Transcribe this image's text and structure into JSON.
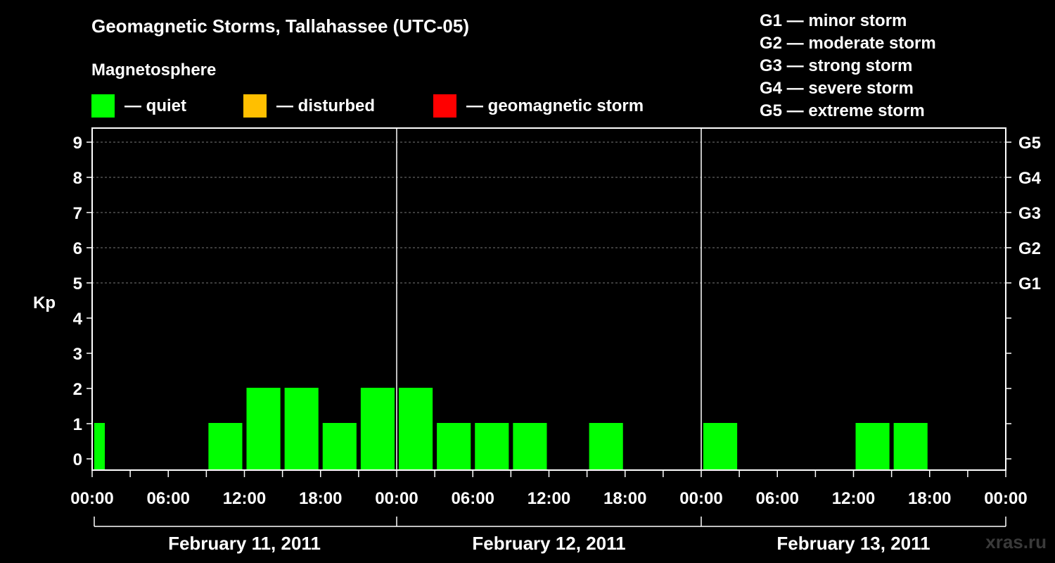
{
  "header": {
    "title": "Geomagnetic Storms, Tallahassee (UTC-05)",
    "subtitle": "Magnetosphere"
  },
  "legend": {
    "items": [
      {
        "label": "— quiet",
        "color": "#00ff00"
      },
      {
        "label": "— disturbed",
        "color": "#ffbf00"
      },
      {
        "label": "— geomagnetic storm",
        "color": "#ff0000"
      }
    ]
  },
  "g_scale_legend": [
    "G1 — minor storm",
    "G2 — moderate storm",
    "G3 — strong storm",
    "G4 — severe storm",
    "G5 — extreme storm"
  ],
  "watermark": "xras.ru",
  "chart_data": {
    "type": "bar",
    "title": "Geomagnetic Storms, Tallahassee (UTC-05)",
    "ylabel": "Kp",
    "xlabel": "",
    "ylim": [
      0,
      9
    ],
    "yticks": [
      "0",
      "1",
      "2",
      "3",
      "4",
      "5",
      "6",
      "7",
      "8",
      "9"
    ],
    "right_axis_labels": [
      {
        "kp": 5,
        "label": "G1"
      },
      {
        "kp": 6,
        "label": "G2"
      },
      {
        "kp": 7,
        "label": "G3"
      },
      {
        "kp": 8,
        "label": "G4"
      },
      {
        "kp": 9,
        "label": "G5"
      }
    ],
    "x_tick_labels": [
      "00:00",
      "06:00",
      "12:00",
      "18:00",
      "00:00",
      "06:00",
      "12:00",
      "18:00",
      "00:00",
      "06:00",
      "12:00",
      "18:00",
      "00:00"
    ],
    "days": [
      "February 11, 2011",
      "February 12, 2011",
      "February 13, 2011"
    ],
    "interval_hours": 3,
    "series": [
      {
        "values": [
          1,
          null,
          null,
          1,
          2,
          2,
          1,
          2,
          2,
          1,
          1,
          1,
          null,
          1,
          null,
          null,
          1,
          null,
          null,
          null,
          1,
          1,
          null,
          null
        ],
        "colors": [
          "#00ff00",
          "#00ff00",
          "#00ff00",
          "#00ff00",
          "#00ff00",
          "#00ff00",
          "#00ff00",
          "#00ff00",
          "#00ff00",
          "#00ff00",
          "#00ff00",
          "#00ff00",
          "#00ff00",
          "#00ff00",
          "#00ff00",
          "#00ff00",
          "#00ff00",
          "#00ff00",
          "#00ff00",
          "#00ff00",
          "#00ff00",
          "#00ff00",
          "#00ff00",
          "#00ff00"
        ]
      }
    ],
    "partial_first_bar_hours": 1,
    "grid": "dashed at Kp 5-9",
    "legend_position": "top"
  }
}
